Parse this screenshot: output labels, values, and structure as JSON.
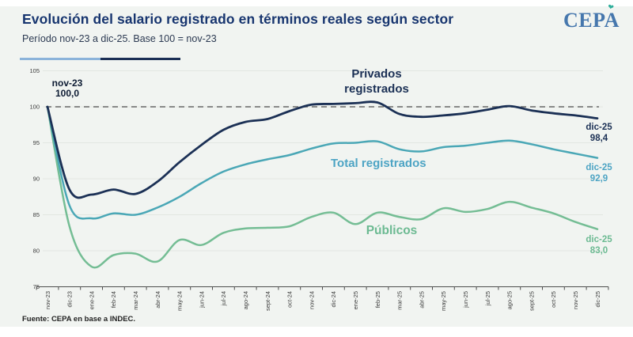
{
  "header": {
    "title": "Evolución del salario registrado en términos reales según sector",
    "subtitle": "Período nov-23 a dic-25. Base 100 = nov-23",
    "logo_text": "CEPA"
  },
  "footer": {
    "source": "Fuente: CEPA en base a INDEC."
  },
  "colors": {
    "title": "#17356f",
    "privados": "#1b2f55",
    "total": "#4da4c4",
    "publicos": "#6cba92",
    "baseline_dash": "#7a7a7a",
    "logo_blue": "#4677ad",
    "logo_leaf_teal": "#2fae9b"
  },
  "chart_data": {
    "type": "line",
    "title": "Evolución del salario registrado en términos reales según sector",
    "xlabel": "",
    "ylabel": "",
    "ylim": [
      75,
      105
    ],
    "yticks": [
      75,
      80,
      85,
      90,
      95,
      100,
      105
    ],
    "grid": true,
    "baseline": {
      "value": 100,
      "style": "dashed",
      "color": "#7a7a7a"
    },
    "x": [
      "nov-23",
      "dic-23",
      "ene-24",
      "feb-24",
      "mar-24",
      "abr-24",
      "may-24",
      "jun-24",
      "jul-24",
      "ago-24",
      "sept-24",
      "oct-24",
      "nov-24",
      "dic-24",
      "ene-25",
      "feb-25",
      "mar-25",
      "abr-25",
      "may-25",
      "jun-25",
      "jul-25",
      "ago-25",
      "sept-25",
      "oct-25",
      "nov-25",
      "dic-25"
    ],
    "series": [
      {
        "name": "Privados registrados",
        "color": "#1b3055",
        "line_width": 2.8,
        "values": [
          100.0,
          88.5,
          87.8,
          88.5,
          87.9,
          89.6,
          92.3,
          94.7,
          96.8,
          97.9,
          98.3,
          99.4,
          100.3,
          100.4,
          100.5,
          100.6,
          99.0,
          98.6,
          98.8,
          99.1,
          99.6,
          100.1,
          99.5,
          99.1,
          98.8,
          98.4
        ]
      },
      {
        "name": "Total registrados",
        "color": "#4aa7b6",
        "line_width": 2.5,
        "values": [
          100.0,
          86.3,
          84.5,
          85.2,
          85.0,
          86.0,
          87.5,
          89.4,
          91.0,
          92.0,
          92.7,
          93.3,
          94.2,
          94.9,
          95.0,
          95.2,
          94.1,
          93.8,
          94.4,
          94.6,
          95.0,
          95.3,
          94.8,
          94.1,
          93.5,
          92.9
        ]
      },
      {
        "name": "Públicos",
        "color": "#74bd94",
        "line_width": 2.5,
        "values": [
          100.0,
          83.4,
          77.8,
          79.4,
          79.6,
          78.5,
          81.5,
          80.8,
          82.5,
          83.1,
          83.2,
          83.4,
          84.7,
          85.3,
          83.7,
          85.3,
          84.7,
          84.4,
          85.9,
          85.4,
          85.8,
          86.8,
          86.0,
          85.2,
          84.0,
          83.0
        ]
      }
    ],
    "annotations": {
      "start": {
        "line1": "nov-23",
        "line2": "100,0"
      },
      "series_labels": {
        "privados_line1": "Privados",
        "privados_line2": "registrados",
        "total": "Total registrados",
        "publicos": "Públicos"
      },
      "end": {
        "privados": {
          "line1": "dic-25",
          "line2": "98,4"
        },
        "total": {
          "line1": "dic-25",
          "line2": "92,9"
        },
        "publicos": {
          "line1": "dic-25",
          "line2": "83,0"
        }
      }
    }
  }
}
